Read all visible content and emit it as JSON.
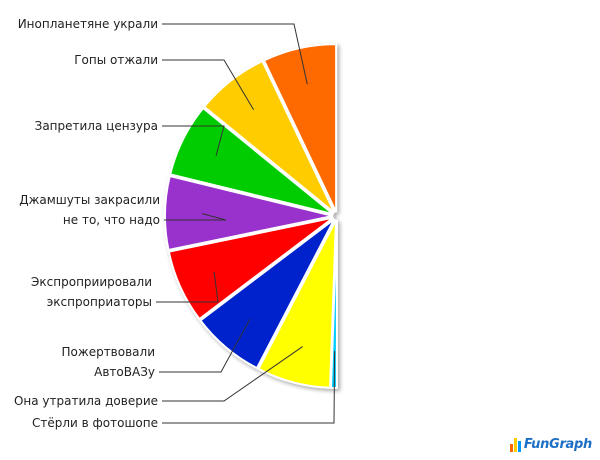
{
  "chart_data": {
    "type": "pie",
    "title": "",
    "series": [
      {
        "label": "Инопланетяне украли",
        "value": 1,
        "color": "#ff6a00"
      },
      {
        "label": "Гопы отжали",
        "value": 1,
        "color": "#ffcc00"
      },
      {
        "label": "Запретила цензура",
        "value": 1,
        "color": "#00cc00"
      },
      {
        "label": "Джамшуты закрасили\nне то, что надо",
        "value": 1,
        "color": "#9933cc"
      },
      {
        "label": "Экспроприировали\nэкспроприаторы",
        "value": 1,
        "color": "#ff0000"
      },
      {
        "label": "Пожертвовали\nАвтоВАЗу",
        "value": 1,
        "color": "#0022cc"
      },
      {
        "label": "Она утратила доверие",
        "value": 1,
        "color": "#ffff00"
      },
      {
        "label": "Стёрли в фотошопе",
        "value": 0.08,
        "color": "#00ccff"
      }
    ],
    "half_pie": "left",
    "legend": "none"
  },
  "branding": {
    "logo_text": "FunGraph",
    "bar_colors": [
      "#ff6600",
      "#ffcc00",
      "#0099ff"
    ]
  }
}
